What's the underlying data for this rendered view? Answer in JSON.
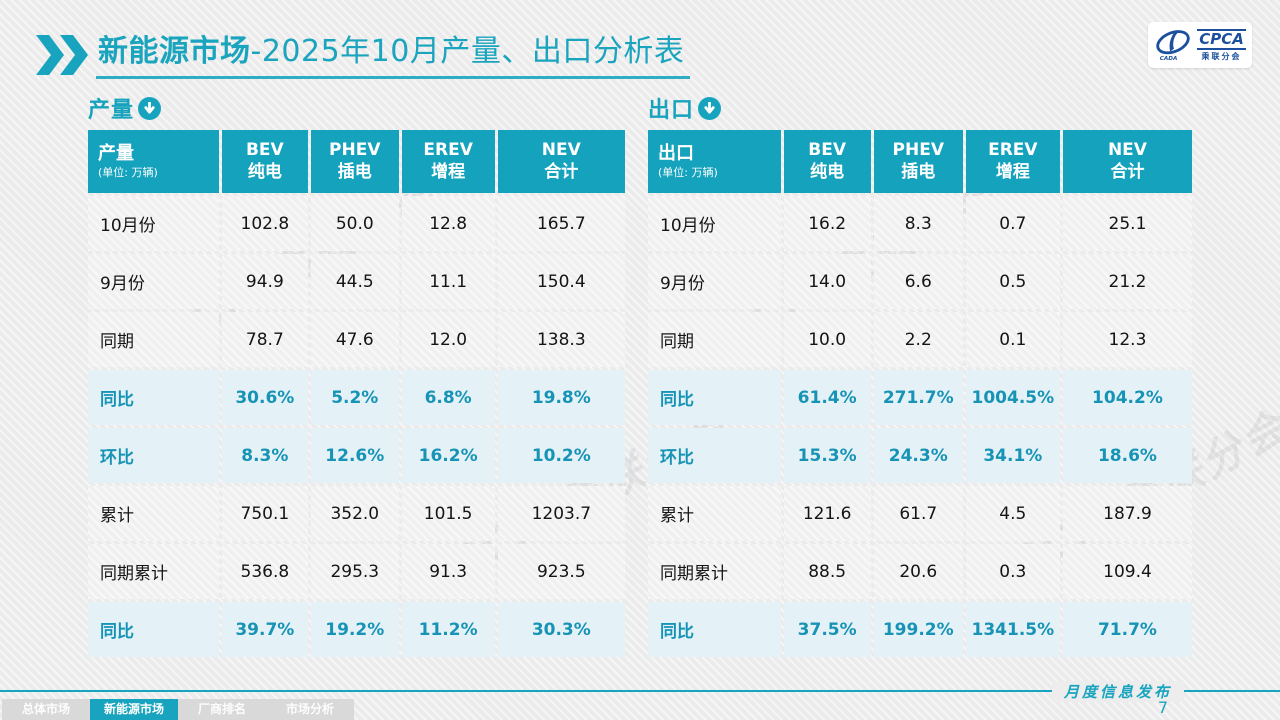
{
  "page": {
    "title_bold": "新能源市场",
    "title_rest": "-2025年10月产量、出口分析表",
    "footer_label": "月度信息发布",
    "page_number": "7"
  },
  "logo": {
    "name": "CPCA",
    "subtitle": "乘联分会",
    "watermark": "CPCA 乘联分会"
  },
  "colors": {
    "teal": "#18a4be",
    "header_bg": "#14a2bd",
    "percent_text": "#1793b5",
    "highlight_row_bg": "#e4f2f8",
    "logo_blue": "#1c4f9e"
  },
  "nav_tabs": [
    {
      "label": "总体市场",
      "active": false
    },
    {
      "label": "新能源市场",
      "active": true
    },
    {
      "label": "厂商排名",
      "active": false
    },
    {
      "label": "市场分析",
      "active": false
    }
  ],
  "tables": [
    {
      "section_label": "产量",
      "header": {
        "title": "产量",
        "unit": "(单位: 万辆)",
        "columns": [
          {
            "line1": "BEV",
            "line2": "纯电"
          },
          {
            "line1": "PHEV",
            "line2": "插电"
          },
          {
            "line1": "EREV",
            "line2": "增程"
          },
          {
            "line1": "NEV",
            "line2": "合计"
          }
        ]
      },
      "rows": [
        {
          "label": "10月份",
          "values": [
            "102.8",
            "50.0",
            "12.8",
            "165.7"
          ],
          "highlight": false
        },
        {
          "label": "9月份",
          "values": [
            "94.9",
            "44.5",
            "11.1",
            "150.4"
          ],
          "highlight": false
        },
        {
          "label": "同期",
          "values": [
            "78.7",
            "47.6",
            "12.0",
            "138.3"
          ],
          "highlight": false
        },
        {
          "label": "同比",
          "values": [
            "30.6%",
            "5.2%",
            "6.8%",
            "19.8%"
          ],
          "highlight": true
        },
        {
          "label": "环比",
          "values": [
            "8.3%",
            "12.6%",
            "16.2%",
            "10.2%"
          ],
          "highlight": true
        },
        {
          "label": "累计",
          "values": [
            "750.1",
            "352.0",
            "101.5",
            "1203.7"
          ],
          "highlight": false
        },
        {
          "label": "同期累计",
          "values": [
            "536.8",
            "295.3",
            "91.3",
            "923.5"
          ],
          "highlight": false
        },
        {
          "label": "同比",
          "values": [
            "39.7%",
            "19.2%",
            "11.2%",
            "30.3%"
          ],
          "highlight": true
        }
      ]
    },
    {
      "section_label": "出口",
      "header": {
        "title": "出口",
        "unit": "(单位: 万辆)",
        "columns": [
          {
            "line1": "BEV",
            "line2": "纯电"
          },
          {
            "line1": "PHEV",
            "line2": "插电"
          },
          {
            "line1": "EREV",
            "line2": "增程"
          },
          {
            "line1": "NEV",
            "line2": "合计"
          }
        ]
      },
      "rows": [
        {
          "label": "10月份",
          "values": [
            "16.2",
            "8.3",
            "0.7",
            "25.1"
          ],
          "highlight": false
        },
        {
          "label": "9月份",
          "values": [
            "14.0",
            "6.6",
            "0.5",
            "21.2"
          ],
          "highlight": false
        },
        {
          "label": "同期",
          "values": [
            "10.0",
            "2.2",
            "0.1",
            "12.3"
          ],
          "highlight": false
        },
        {
          "label": "同比",
          "values": [
            "61.4%",
            "271.7%",
            "1004.5%",
            "104.2%"
          ],
          "highlight": true
        },
        {
          "label": "环比",
          "values": [
            "15.3%",
            "24.3%",
            "34.1%",
            "18.6%"
          ],
          "highlight": true
        },
        {
          "label": "累计",
          "values": [
            "121.6",
            "61.7",
            "4.5",
            "187.9"
          ],
          "highlight": false
        },
        {
          "label": "同期累计",
          "values": [
            "88.5",
            "20.6",
            "0.3",
            "109.4"
          ],
          "highlight": false
        },
        {
          "label": "同比",
          "values": [
            "37.5%",
            "199.2%",
            "1341.5%",
            "71.7%"
          ],
          "highlight": true
        }
      ]
    }
  ]
}
